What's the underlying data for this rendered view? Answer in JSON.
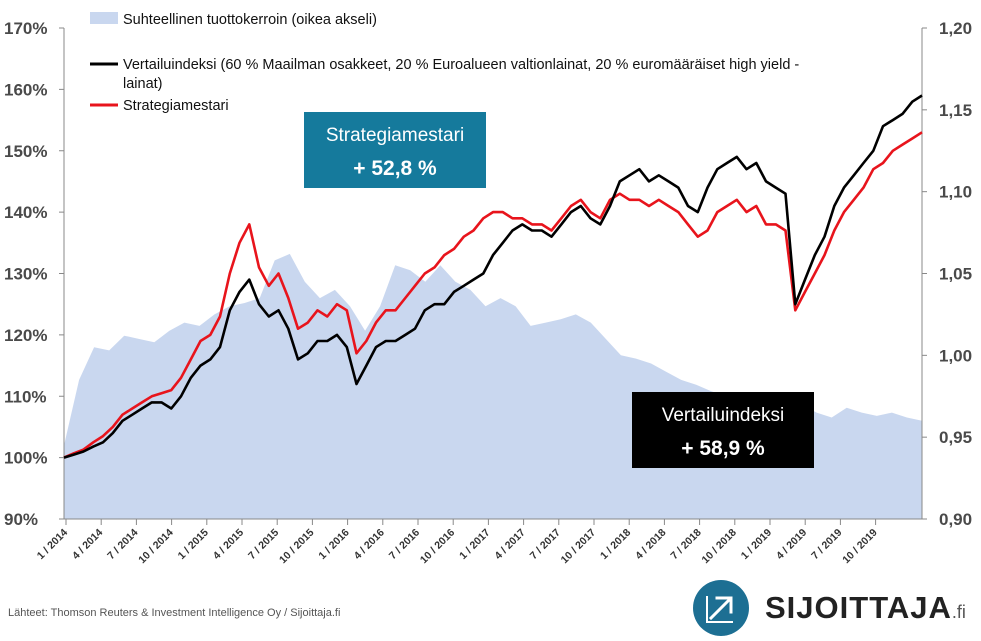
{
  "chart_data": {
    "type": "line",
    "left_axis": {
      "ticks": [
        "90%",
        "100%",
        "110%",
        "120%",
        "130%",
        "140%",
        "150%",
        "160%",
        "170%"
      ],
      "range": [
        90,
        170
      ]
    },
    "right_axis": {
      "ticks": [
        "0,90",
        "0,95",
        "1,00",
        "1,05",
        "1,10",
        "1,15",
        "1,20"
      ],
      "range": [
        0.9,
        1.2
      ]
    },
    "x_ticks": [
      "1 / 2014",
      "4 / 2014",
      "7 / 2014",
      "10 / 2014",
      "1 / 2015",
      "4 / 2015",
      "7 / 2015",
      "10 / 2015",
      "1 / 2016",
      "4 / 2016",
      "7 / 2016",
      "10 / 2016",
      "1 / 2017",
      "4 / 2017",
      "7 / 2017",
      "10 / 2017",
      "1 / 2018",
      "4 / 2018",
      "7 / 2018",
      "10 / 2018",
      "1 / 2019",
      "4 / 2019",
      "7 / 2019",
      "10 / 2019"
    ],
    "area_series": {
      "name": "Suhteellinen tuottokerroin (oikea akseli)",
      "axis": "right",
      "color": "#c9d7ef",
      "values": [
        0.945,
        0.985,
        1.005,
        1.003,
        1.012,
        1.01,
        1.008,
        1.015,
        1.02,
        1.018,
        1.025,
        1.03,
        1.032,
        1.035,
        1.058,
        1.062,
        1.045,
        1.035,
        1.04,
        1.03,
        1.015,
        1.03,
        1.055,
        1.052,
        1.045,
        1.055,
        1.045,
        1.04,
        1.03,
        1.035,
        1.03,
        1.018,
        1.02,
        1.022,
        1.025,
        1.02,
        1.01,
        1.0,
        0.998,
        0.995,
        0.99,
        0.985,
        0.982,
        0.978,
        0.975,
        0.97,
        0.972,
        0.968,
        0.968,
        0.97,
        0.965,
        0.962,
        0.968,
        0.965,
        0.963,
        0.965,
        0.962,
        0.96
      ]
    },
    "series": [
      {
        "name": "Vertailuindeksi (60 % Maailman osakkeet, 20 % Euroalueen valtionlainat, 20 % euromääräiset high yield -lainat)",
        "color": "#000000",
        "values": [
          100,
          100.5,
          101,
          101.8,
          102.5,
          104,
          106,
          107,
          108,
          109,
          109,
          108,
          110,
          113,
          115,
          116,
          118,
          124,
          127,
          129,
          125,
          123,
          124,
          121,
          116,
          117,
          119,
          119,
          120,
          118,
          112,
          115,
          118,
          119,
          119,
          120,
          121,
          124,
          125,
          125,
          127,
          128,
          129,
          130,
          133,
          135,
          137,
          138,
          137,
          137,
          136,
          138,
          140,
          141,
          139,
          138,
          141,
          145,
          146,
          147,
          145,
          146,
          145,
          144,
          141,
          140,
          144,
          147,
          148,
          149,
          147,
          148,
          145,
          144,
          143,
          125,
          129,
          133,
          136,
          141,
          144,
          146,
          148,
          150,
          154,
          155,
          156,
          158,
          159
        ]
      },
      {
        "name": "Strategiamestari",
        "color": "#e8141c",
        "values": [
          100,
          100.7,
          101.3,
          102.5,
          103.5,
          105,
          107,
          108,
          109,
          110,
          110.5,
          111,
          113,
          116,
          119,
          120,
          123,
          130,
          135,
          138,
          131,
          128,
          130,
          126,
          121,
          122,
          124,
          123,
          125,
          124,
          117,
          119,
          122,
          124,
          124,
          126,
          128,
          130,
          131,
          133,
          134,
          136,
          137,
          139,
          140,
          140,
          139,
          139,
          138,
          138,
          137,
          139,
          141,
          142,
          140,
          139,
          142,
          143,
          142,
          142,
          141,
          142,
          141,
          140,
          138,
          136,
          137,
          140,
          141,
          142,
          140,
          141,
          138,
          138,
          137,
          124,
          127,
          130,
          133,
          137,
          140,
          142,
          144,
          147,
          148,
          150,
          151,
          152,
          153
        ]
      }
    ]
  },
  "legend": {
    "area_label": "Suhteellinen tuottokerroin (oikea akseli)",
    "bench_line1": "Vertailuindeksi (60 % Maailman osakkeet, 20 % Euroalueen valtionlainat, 20 % euromääräiset high yield -",
    "bench_line2": "lainat)",
    "strategy_label": "Strategiamestari"
  },
  "annotations": {
    "strategy_title": "Strategiamestari",
    "strategy_value": "+ 52,8 %",
    "bench_title": "Vertailuindeksi",
    "bench_value": "+ 58,9 %"
  },
  "footer": {
    "source": "Lähteet: Thomson Reuters & Investment Intelligence Oy / Sijoittaja.fi",
    "logo_text": "SIJOITTAJA",
    "logo_suffix": ".fi"
  }
}
